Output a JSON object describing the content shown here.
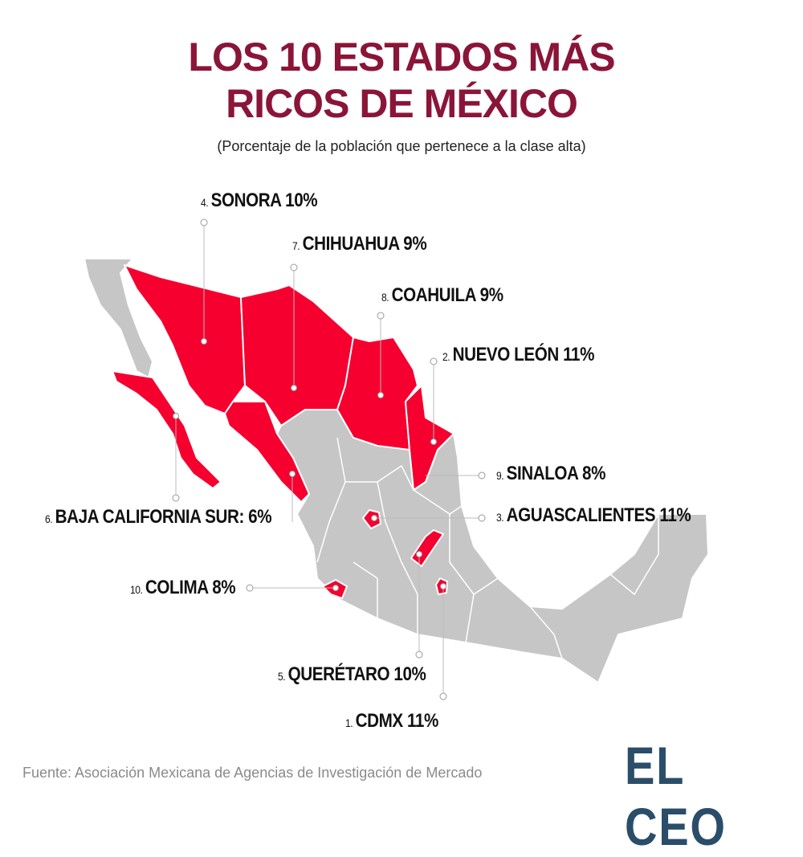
{
  "title_line1": "LOS 10 ESTADOS MÁS",
  "title_line2": "RICOS DE MÉXICO",
  "subtitle": "(Porcentaje de la población que pertenece a la clase alta)",
  "colors": {
    "title": "#8a1538",
    "highlight": "#f5002f",
    "base": "#c6c6c6",
    "logo": "#2a4d69"
  },
  "states": [
    {
      "rank": "1.",
      "name": "CDMX 11%",
      "percent": 11
    },
    {
      "rank": "2.",
      "name": "NUEVO LEÓN 11%",
      "percent": 11
    },
    {
      "rank": "3.",
      "name": "AGUASCALIENTES 11%",
      "percent": 11
    },
    {
      "rank": "4.",
      "name": "SONORA 10%",
      "percent": 10
    },
    {
      "rank": "5.",
      "name": "QUERÉTARO 10%",
      "percent": 10
    },
    {
      "rank": "6.",
      "name": "BAJA CALIFORNIA SUR:  6%",
      "percent": 6
    },
    {
      "rank": "7.",
      "name": "CHIHUAHUA 9%",
      "percent": 9
    },
    {
      "rank": "8.",
      "name": "COAHUILA 9%",
      "percent": 9
    },
    {
      "rank": "9.",
      "name": "SINALOA 8%",
      "percent": 8
    },
    {
      "rank": "10.",
      "name": "COLIMA 8%",
      "percent": 8
    }
  ],
  "source": "Fuente: Asociación Mexicana de Agencias de Investigación de Mercado",
  "logo": "EL CEO"
}
